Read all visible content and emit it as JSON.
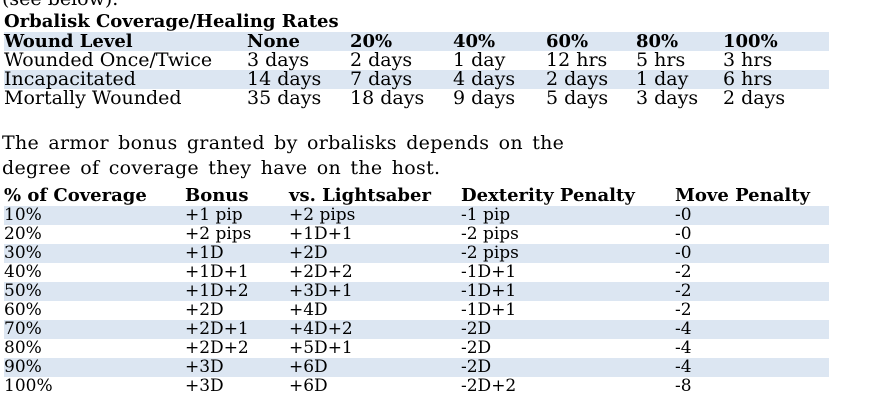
{
  "clipped_line": "(see below).",
  "healing": {
    "caption": "Orbalisk Coverage/Healing Rates",
    "headers": [
      "Wound Level",
      "None",
      "20%",
      "40%",
      "60%",
      "80%",
      "100%"
    ],
    "rows": [
      [
        "Wounded Once/Twice",
        "3 days",
        "2 days",
        "1 day",
        "12 hrs",
        "5 hrs",
        "3 hrs"
      ],
      [
        "Incapacitated",
        "14 days",
        "7 days",
        "4 days",
        "2 days",
        "1 day",
        "6 hrs"
      ],
      [
        "Mortally Wounded",
        "35 days",
        "18 days",
        "9 days",
        "5 days",
        "3 days",
        "2 days"
      ]
    ]
  },
  "paragraph": "The armor bonus granted by orbalisks depends on the degree of coverage they have on the host.",
  "coverage": {
    "headers": [
      "% of Coverage",
      "Bonus",
      "vs. Lightsaber",
      "Dexterity Penalty",
      "Move Penalty"
    ],
    "rows": [
      [
        "10%",
        "+1 pip",
        "+2 pips",
        "-1 pip",
        "-0"
      ],
      [
        "20%",
        "+2 pips",
        "+1D+1",
        "-2 pips",
        "-0"
      ],
      [
        "30%",
        "+1D",
        "+2D",
        "-2 pips",
        "-0"
      ],
      [
        "40%",
        "+1D+1",
        "+2D+2",
        "-1D+1",
        "-2"
      ],
      [
        "50%",
        "+1D+2",
        "+3D+1",
        "-1D+1",
        "-2"
      ],
      [
        "60%",
        "+2D",
        "+4D",
        "-1D+1",
        "-2"
      ],
      [
        "70%",
        "+2D+1",
        "+4D+2",
        "-2D",
        "-4"
      ],
      [
        "80%",
        "+2D+2",
        "+5D+1",
        "-2D",
        "-4"
      ],
      [
        "90%",
        "+3D",
        "+6D",
        "-2D",
        "-4"
      ],
      [
        "100%",
        "+3D",
        "+6D",
        "-2D+2",
        "-8"
      ]
    ]
  },
  "colors": {
    "row_shade": "#dce6f2",
    "text": "#000000",
    "background": "#ffffff"
  }
}
